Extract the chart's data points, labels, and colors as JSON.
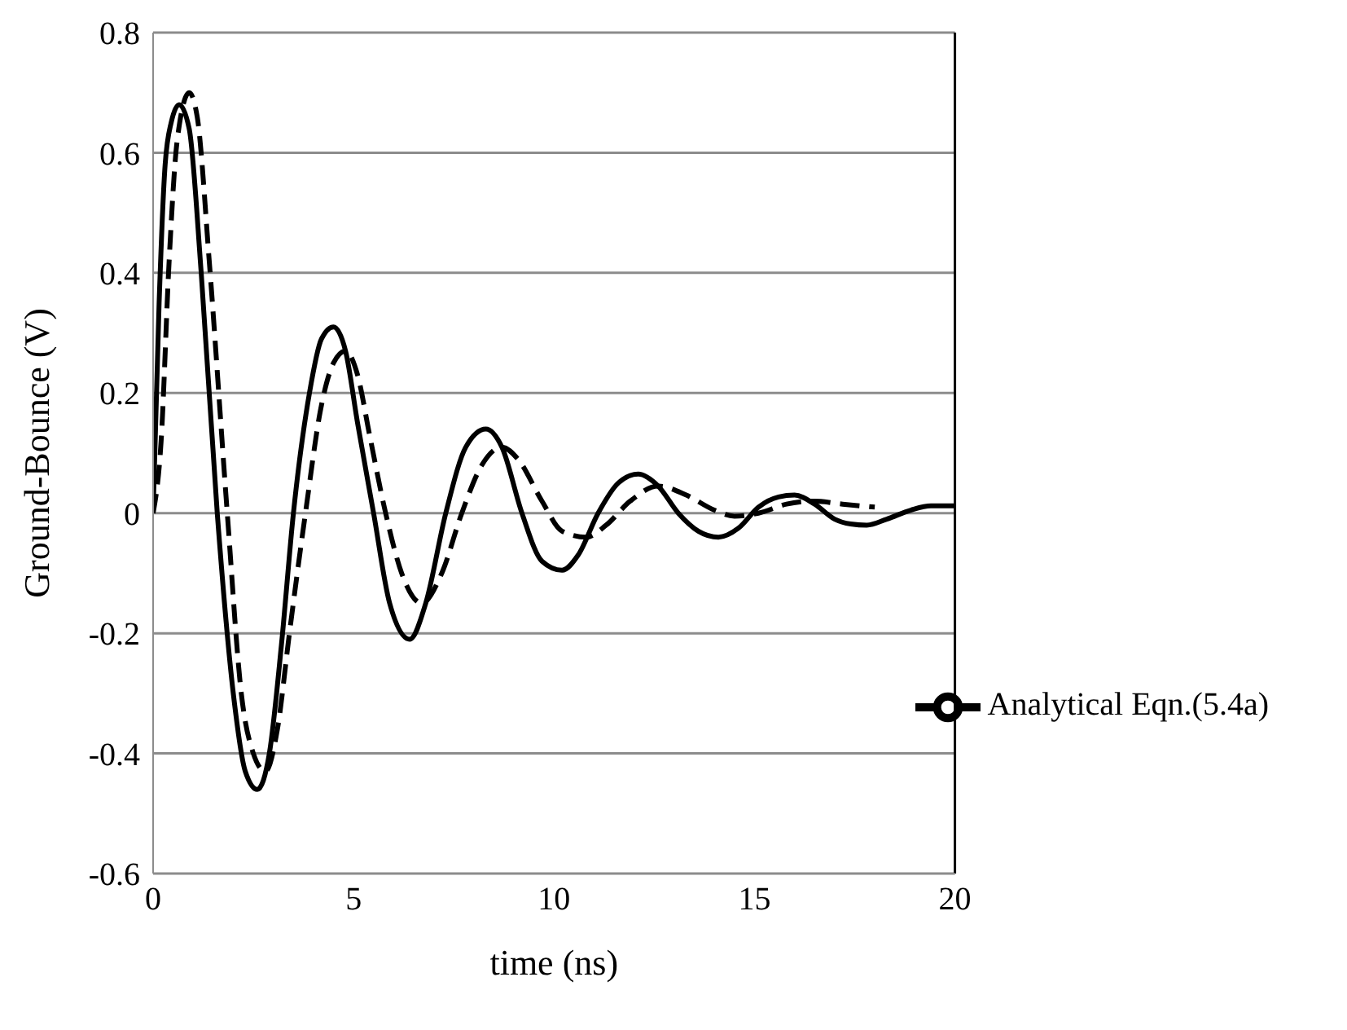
{
  "chart_data": {
    "type": "line",
    "xlabel": "time (ns)",
    "ylabel": "Ground-Bounce (V)",
    "xlim": [
      0,
      20
    ],
    "xticks": [
      0,
      5,
      10,
      15,
      20
    ],
    "ylim": [
      -0.6,
      0.8
    ],
    "yticks": [
      -0.6,
      -0.4,
      -0.2,
      0,
      0.2,
      0.4,
      0.6,
      0.8
    ],
    "grid": "y",
    "legend": "bottom right",
    "marker": "none",
    "series": [
      {
        "name": "Analytical Eqn.(5.4a)",
        "color": "#000000",
        "line_style": "solid",
        "x": [
          0,
          0.15,
          0.3,
          0.45,
          0.65,
          0.9,
          1.2,
          1.6,
          2.0,
          2.3,
          2.6,
          2.9,
          3.2,
          3.5,
          3.9,
          4.2,
          4.5,
          4.8,
          5.1,
          5.5,
          5.9,
          6.4,
          6.8,
          7.3,
          7.8,
          8.3,
          8.7,
          9.2,
          9.7,
          10.2,
          10.6,
          11.1,
          11.6,
          12.1,
          12.6,
          13.1,
          13.6,
          14.1,
          14.6,
          15.1,
          15.6,
          16,
          16.5,
          17,
          17.4,
          17.8,
          18.3,
          18.9,
          19.4,
          20
        ],
        "values": [
          0,
          0.35,
          0.58,
          0.65,
          0.68,
          0.64,
          0.4,
          0,
          -0.3,
          -0.43,
          -0.46,
          -0.4,
          -0.22,
          0,
          0.2,
          0.29,
          0.31,
          0.27,
          0.15,
          0,
          -0.15,
          -0.21,
          -0.15,
          0,
          0.11,
          0.14,
          0.11,
          0,
          -0.08,
          -0.095,
          -0.07,
          0,
          0.05,
          0.065,
          0.045,
          0,
          -0.03,
          -0.04,
          -0.025,
          0.01,
          0.027,
          0.03,
          0.015,
          -0.01,
          -0.018,
          -0.02,
          -0.01,
          0.005,
          0.012,
          0.012
        ]
      },
      {
        "color": "#000000",
        "line_style": "dashed",
        "x": [
          0,
          0.2,
          0.4,
          0.6,
          0.9,
          1.1,
          1.4,
          1.85,
          2.2,
          2.5,
          2.8,
          3.1,
          3.4,
          3.8,
          4.2,
          4.5,
          4.8,
          5.1,
          5.4,
          5.8,
          6.2,
          6.7,
          7.2,
          7.7,
          8.2,
          8.7,
          9.1,
          9.7,
          10.2,
          10.8,
          11.3,
          11.9,
          12.6,
          13.3,
          14,
          14.5,
          15.1,
          15.8,
          16.5,
          17.2,
          18
        ],
        "values": [
          0,
          0.12,
          0.42,
          0.62,
          0.7,
          0.66,
          0.42,
          0,
          -0.3,
          -0.4,
          -0.43,
          -0.36,
          -0.2,
          0,
          0.18,
          0.25,
          0.27,
          0.23,
          0.13,
          0,
          -0.1,
          -0.15,
          -0.1,
          0,
          0.08,
          0.11,
          0.09,
          0.02,
          -0.03,
          -0.04,
          -0.02,
          0.02,
          0.045,
          0.03,
          0.005,
          -0.005,
          0,
          0.015,
          0.02,
          0.015,
          0.01
        ]
      }
    ]
  }
}
